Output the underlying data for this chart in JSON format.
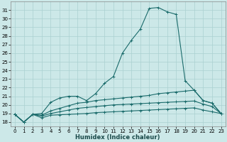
{
  "xlabel": "Humidex (Indice chaleur)",
  "xlim": [
    -0.5,
    23.5
  ],
  "ylim": [
    17.5,
    32.0
  ],
  "yticks": [
    18,
    19,
    20,
    21,
    22,
    23,
    24,
    25,
    26,
    27,
    28,
    29,
    30,
    31
  ],
  "xticks": [
    0,
    1,
    2,
    3,
    4,
    5,
    6,
    7,
    8,
    9,
    10,
    11,
    12,
    13,
    14,
    15,
    16,
    17,
    18,
    19,
    20,
    21,
    22,
    23
  ],
  "bg_color": "#cce8e8",
  "grid_color": "#aad0d0",
  "line_color": "#1a6b6b",
  "line1_x": [
    0,
    1,
    2,
    3,
    4,
    5,
    6,
    7,
    8,
    9,
    10,
    11,
    12,
    13,
    14,
    15,
    16,
    17,
    18,
    19,
    20,
    21,
    22,
    23
  ],
  "line1_y": [
    18.9,
    18.0,
    18.9,
    19.0,
    20.3,
    20.8,
    21.0,
    21.0,
    20.5,
    21.3,
    22.5,
    23.3,
    26.0,
    27.5,
    28.8,
    31.2,
    31.3,
    30.8,
    30.5,
    22.8,
    21.7,
    20.5,
    20.2,
    19.0
  ],
  "line2_x": [
    0,
    1,
    2,
    3,
    4,
    5,
    6,
    7,
    8,
    9,
    10,
    11,
    12,
    13,
    14,
    15,
    16,
    17,
    18,
    19,
    20,
    21,
    22,
    23
  ],
  "line2_y": [
    18.9,
    18.0,
    18.9,
    18.8,
    19.3,
    19.6,
    19.9,
    20.2,
    20.3,
    20.5,
    20.6,
    20.7,
    20.8,
    20.9,
    21.0,
    21.1,
    21.3,
    21.4,
    21.5,
    21.6,
    21.7,
    20.5,
    20.2,
    19.0
  ],
  "line3_x": [
    0,
    1,
    2,
    3,
    4,
    5,
    6,
    7,
    8,
    9,
    10,
    11,
    12,
    13,
    14,
    15,
    16,
    17,
    18,
    19,
    20,
    21,
    22,
    23
  ],
  "line3_y": [
    18.9,
    18.0,
    18.9,
    18.7,
    19.0,
    19.2,
    19.4,
    19.6,
    19.7,
    19.8,
    19.9,
    20.0,
    20.05,
    20.1,
    20.15,
    20.2,
    20.25,
    20.3,
    20.35,
    20.4,
    20.45,
    20.1,
    19.8,
    19.0
  ],
  "line4_x": [
    0,
    1,
    2,
    3,
    4,
    5,
    6,
    7,
    8,
    9,
    10,
    11,
    12,
    13,
    14,
    15,
    16,
    17,
    18,
    19,
    20,
    21,
    22,
    23
  ],
  "line4_y": [
    18.9,
    18.0,
    18.9,
    18.5,
    18.8,
    18.85,
    18.9,
    18.95,
    19.0,
    19.1,
    19.15,
    19.2,
    19.25,
    19.3,
    19.35,
    19.4,
    19.45,
    19.5,
    19.55,
    19.6,
    19.65,
    19.4,
    19.2,
    19.0
  ],
  "tick_fontsize": 5.0,
  "label_fontsize": 6.0
}
